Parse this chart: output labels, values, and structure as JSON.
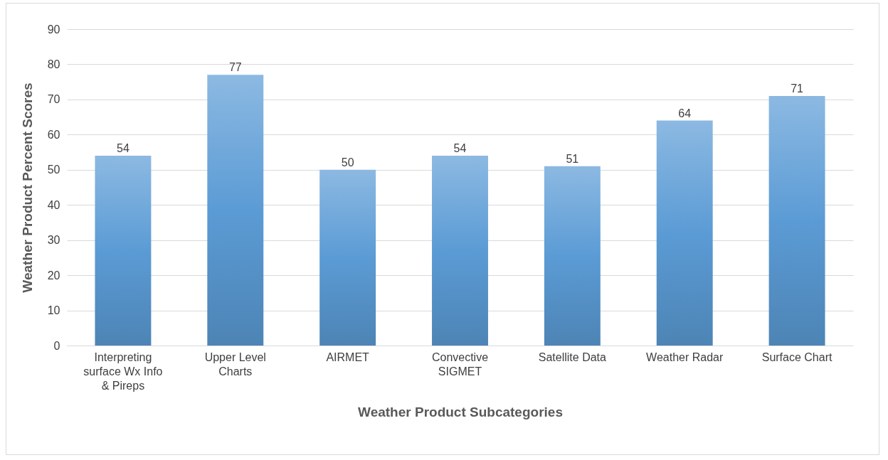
{
  "chart_data": {
    "type": "bar",
    "xlabel": "Weather Product Subcategories",
    "ylabel": "Weather Product  Percent Scores",
    "categories": [
      "Interpreting surface Wx Info & Pireps",
      "Upper Level Charts",
      "AIRMET",
      "Convective SIGMET",
      "Satellite Data",
      "Weather Radar",
      "Surface Chart"
    ],
    "values": [
      54,
      77,
      50,
      54,
      51,
      64,
      71
    ],
    "color": "#5b9bd5",
    "ylim": [
      0,
      90
    ],
    "yticks": [
      0,
      10,
      20,
      30,
      40,
      50,
      60,
      70,
      80,
      90
    ],
    "grid": "y",
    "data_labels": true
  }
}
